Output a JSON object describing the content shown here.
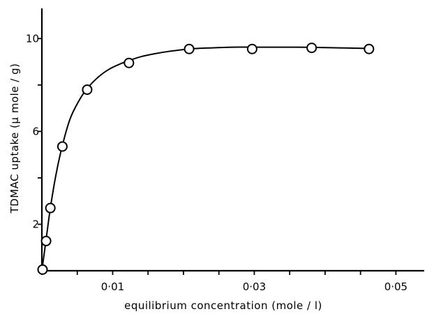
{
  "chart_data": {
    "type": "scatter",
    "xlabel": "equilibrium concentration (mole / l)",
    "ylabel": "TDMAC uptake (μ mole / g)",
    "xlim": [
      0,
      0.054
    ],
    "ylim": [
      0,
      11.3
    ],
    "x_ticks": [
      0,
      0.005,
      0.01,
      0.015,
      0.02,
      0.025,
      0.03,
      0.035,
      0.04,
      0.045,
      0.05
    ],
    "x_tick_labels": [
      {
        "value": 0.01,
        "label": "0·01"
      },
      {
        "value": 0.03,
        "label": "0·03"
      },
      {
        "value": 0.05,
        "label": "0·05"
      }
    ],
    "y_ticks": [
      2,
      4,
      6,
      8,
      10
    ],
    "y_tick_labels": [
      {
        "value": 2,
        "label": "2"
      },
      {
        "value": 6,
        "label": "6"
      },
      {
        "value": 10,
        "label": "10"
      }
    ],
    "grid": false,
    "legend": "none",
    "series": [
      {
        "marker": "open-circle",
        "x": [
          0.0001,
          0.0006,
          0.0012,
          0.0029,
          0.0064,
          0.0123,
          0.0208,
          0.0297,
          0.0381,
          0.0462
        ],
        "y": [
          0.05,
          1.28,
          2.7,
          5.35,
          7.8,
          8.95,
          9.55,
          9.55,
          9.6,
          9.55
        ]
      }
    ],
    "fit_curve": {
      "x": [
        0,
        0.0006,
        0.0012,
        0.002,
        0.0029,
        0.004,
        0.0052,
        0.0064,
        0.008,
        0.0095,
        0.011,
        0.0123,
        0.014,
        0.016,
        0.018,
        0.0208,
        0.024,
        0.027,
        0.0297,
        0.033,
        0.036,
        0.0381,
        0.042,
        0.0462
      ],
      "y": [
        0,
        1.35,
        2.7,
        4.15,
        5.4,
        6.55,
        7.3,
        7.85,
        8.35,
        8.68,
        8.9,
        9.05,
        9.22,
        9.35,
        9.45,
        9.55,
        9.6,
        9.63,
        9.63,
        9.63,
        9.63,
        9.62,
        9.6,
        9.57
      ]
    }
  }
}
